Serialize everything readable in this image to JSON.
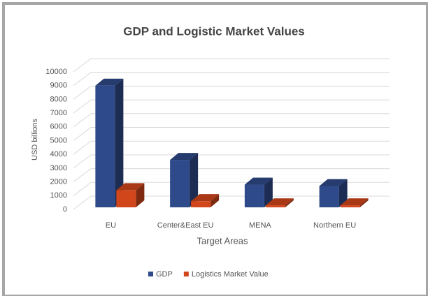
{
  "chart_data": {
    "type": "bar",
    "title": "GDP and Logistic Market Values",
    "categories": [
      "EU",
      "Center&East EU",
      "MENA",
      "Northern EU"
    ],
    "series": [
      {
        "name": "GDP",
        "color": "#2f4a8a",
        "values": [
          9000,
          3600,
          1800,
          1700
        ]
      },
      {
        "name": "Logistics Market Value",
        "color": "#d2461b",
        "values": [
          1400,
          600,
          300,
          300
        ]
      }
    ],
    "xlabel": "Target Areas",
    "ylabel": "USD billions",
    "ylim": [
      0,
      10000
    ],
    "yticks": [
      0,
      1000,
      2000,
      3000,
      4000,
      5000,
      6000,
      7000,
      8000,
      9000,
      10000
    ],
    "grid": true,
    "legend": "bottom"
  }
}
